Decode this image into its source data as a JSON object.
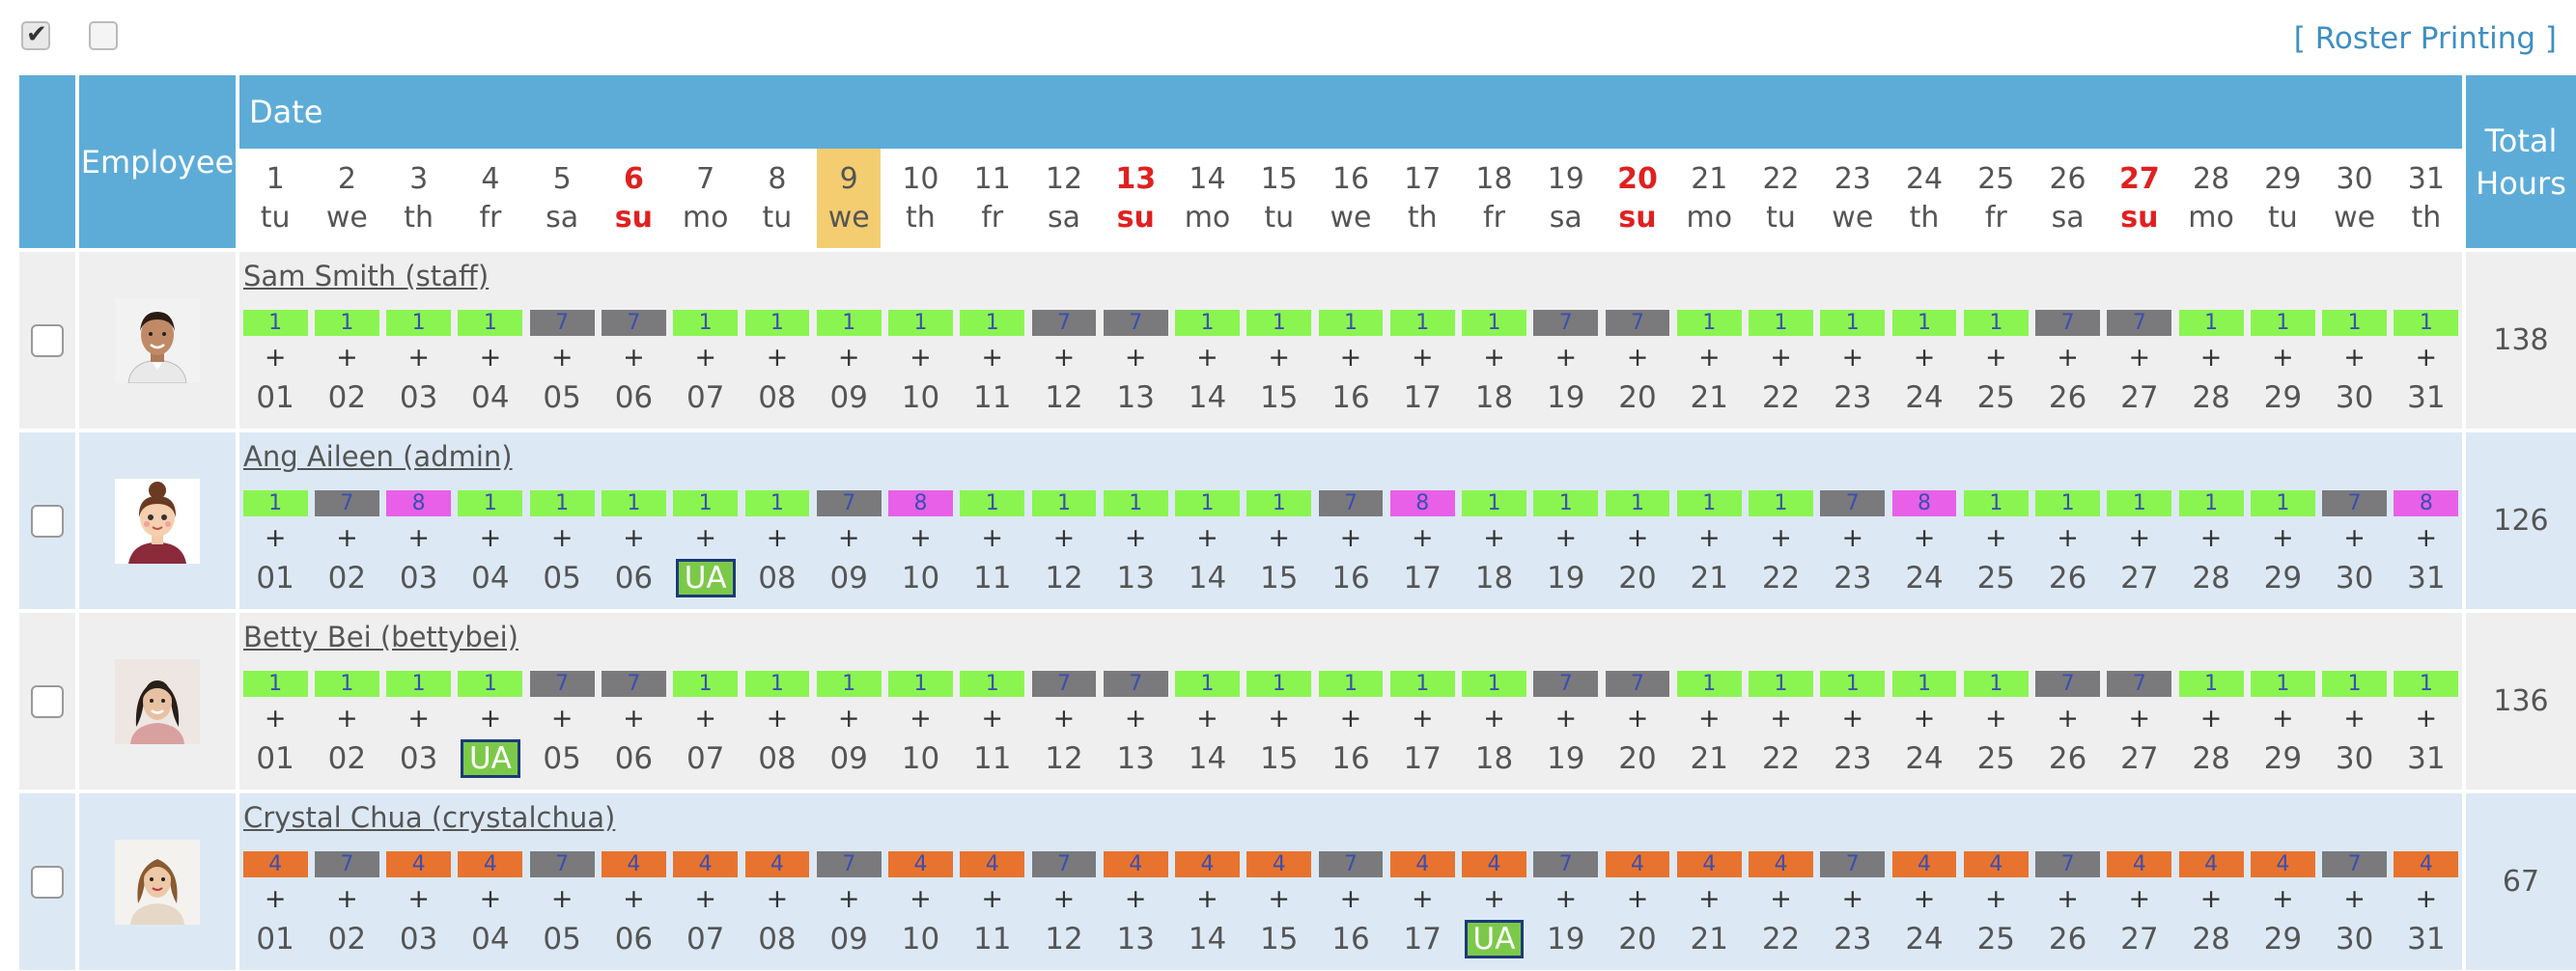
{
  "top": {
    "roster_printing_label": "[ Roster Printing ]"
  },
  "header": {
    "employee_label": "Employee",
    "date_label": "Date",
    "total_line1": "Total",
    "total_line2": "Hours"
  },
  "today_index": 8,
  "days": [
    {
      "num": "1",
      "wd": "tu",
      "sun": false
    },
    {
      "num": "2",
      "wd": "we",
      "sun": false
    },
    {
      "num": "3",
      "wd": "th",
      "sun": false
    },
    {
      "num": "4",
      "wd": "fr",
      "sun": false
    },
    {
      "num": "5",
      "wd": "sa",
      "sun": false
    },
    {
      "num": "6",
      "wd": "su",
      "sun": true
    },
    {
      "num": "7",
      "wd": "mo",
      "sun": false
    },
    {
      "num": "8",
      "wd": "tu",
      "sun": false
    },
    {
      "num": "9",
      "wd": "we",
      "sun": false
    },
    {
      "num": "10",
      "wd": "th",
      "sun": false
    },
    {
      "num": "11",
      "wd": "fr",
      "sun": false
    },
    {
      "num": "12",
      "wd": "sa",
      "sun": false
    },
    {
      "num": "13",
      "wd": "su",
      "sun": true
    },
    {
      "num": "14",
      "wd": "mo",
      "sun": false
    },
    {
      "num": "15",
      "wd": "tu",
      "sun": false
    },
    {
      "num": "16",
      "wd": "we",
      "sun": false
    },
    {
      "num": "17",
      "wd": "th",
      "sun": false
    },
    {
      "num": "18",
      "wd": "fr",
      "sun": false
    },
    {
      "num": "19",
      "wd": "sa",
      "sun": false
    },
    {
      "num": "20",
      "wd": "su",
      "sun": true
    },
    {
      "num": "21",
      "wd": "mo",
      "sun": false
    },
    {
      "num": "22",
      "wd": "tu",
      "sun": false
    },
    {
      "num": "23",
      "wd": "we",
      "sun": false
    },
    {
      "num": "24",
      "wd": "th",
      "sun": false
    },
    {
      "num": "25",
      "wd": "fr",
      "sun": false
    },
    {
      "num": "26",
      "wd": "sa",
      "sun": false
    },
    {
      "num": "27",
      "wd": "su",
      "sun": true
    },
    {
      "num": "28",
      "wd": "mo",
      "sun": false
    },
    {
      "num": "29",
      "wd": "tu",
      "sun": false
    },
    {
      "num": "30",
      "wd": "we",
      "sun": false
    },
    {
      "num": "31",
      "wd": "th",
      "sun": false
    }
  ],
  "shift_colors": {
    "1": "#8af550",
    "4": "#e8732e",
    "7": "#7a7a7c",
    "8": "#e860e8"
  },
  "row_colors": [
    "#efefef",
    "#dce9f5"
  ],
  "ua_label": "UA",
  "plus_label": "+",
  "day_numbers": [
    "01",
    "02",
    "03",
    "04",
    "05",
    "06",
    "07",
    "08",
    "09",
    "10",
    "11",
    "12",
    "13",
    "14",
    "15",
    "16",
    "17",
    "18",
    "19",
    "20",
    "21",
    "22",
    "23",
    "24",
    "25",
    "26",
    "27",
    "28",
    "29",
    "30",
    "31"
  ],
  "employees": [
    {
      "name": "Sam Smith (staff)",
      "avatar": "male",
      "total": "138",
      "shifts": [
        "1",
        "1",
        "1",
        "1",
        "7",
        "7",
        "1",
        "1",
        "1",
        "1",
        "1",
        "7",
        "7",
        "1",
        "1",
        "1",
        "1",
        "1",
        "7",
        "7",
        "1",
        "1",
        "1",
        "1",
        "1",
        "7",
        "7",
        "1",
        "1",
        "1",
        "1"
      ],
      "ua_day": -1
    },
    {
      "name": "Ang Aileen (admin)",
      "avatar": "cartoon",
      "total": "126",
      "shifts": [
        "1",
        "7",
        "8",
        "1",
        "1",
        "1",
        "1",
        "1",
        "7",
        "8",
        "1",
        "1",
        "1",
        "1",
        "1",
        "7",
        "8",
        "1",
        "1",
        "1",
        "1",
        "1",
        "7",
        "8",
        "1",
        "1",
        "1",
        "1",
        "1",
        "7",
        "8"
      ],
      "ua_day": 6
    },
    {
      "name": "Betty Bei (bettybei)",
      "avatar": "female1",
      "total": "136",
      "shifts": [
        "1",
        "1",
        "1",
        "1",
        "7",
        "7",
        "1",
        "1",
        "1",
        "1",
        "1",
        "7",
        "7",
        "1",
        "1",
        "1",
        "1",
        "1",
        "7",
        "7",
        "1",
        "1",
        "1",
        "1",
        "1",
        "7",
        "7",
        "1",
        "1",
        "1",
        "1"
      ],
      "ua_day": 3
    },
    {
      "name": "Crystal Chua (crystalchua)",
      "avatar": "female2",
      "total": "67",
      "shifts": [
        "4",
        "7",
        "4",
        "4",
        "7",
        "4",
        "4",
        "4",
        "7",
        "4",
        "4",
        "7",
        "4",
        "4",
        "4",
        "7",
        "4",
        "4",
        "7",
        "4",
        "4",
        "4",
        "7",
        "4",
        "4",
        "7",
        "4",
        "4",
        "4",
        "7",
        "4"
      ],
      "ua_day": 17
    }
  ]
}
